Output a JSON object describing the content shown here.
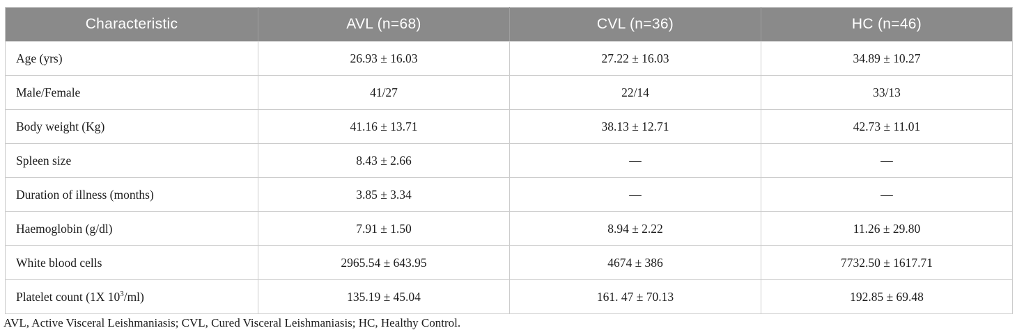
{
  "table": {
    "columns": [
      {
        "label": "Characteristic"
      },
      {
        "label": "AVL (n=68)"
      },
      {
        "label": "CVL (n=36)"
      },
      {
        "label": "HC (n=46)"
      }
    ],
    "rows": [
      {
        "label_segments": [
          {
            "t": "Age (yrs)"
          }
        ],
        "values": [
          "26.93 ± 16.03",
          "27.22 ± 16.03",
          "34.89 ± 10.27"
        ]
      },
      {
        "label_segments": [
          {
            "t": "Male/Female"
          }
        ],
        "values": [
          "41/27",
          "22/14",
          "33/13"
        ]
      },
      {
        "label_segments": [
          {
            "t": "Body weight (Kg)"
          }
        ],
        "values": [
          "41.16 ± 13.71",
          "38.13 ± 12.71",
          "42.73 ± 11.01"
        ]
      },
      {
        "label_segments": [
          {
            "t": "Spleen size"
          }
        ],
        "values": [
          "8.43 ± 2.66",
          "—",
          "—"
        ]
      },
      {
        "label_segments": [
          {
            "t": "Duration of illness (months)"
          }
        ],
        "values": [
          "3.85 ± 3.34",
          "—",
          "—"
        ]
      },
      {
        "label_segments": [
          {
            "t": "Haemoglobin (g/dl)"
          }
        ],
        "values": [
          "7.91 ± 1.50",
          "8.94 ± 2.22",
          "11.26 ± 29.80"
        ]
      },
      {
        "label_segments": [
          {
            "t": "White blood cells"
          }
        ],
        "values": [
          "2965.54 ± 643.95",
          "4674 ± 386",
          "7732.50 ± 1617.71"
        ]
      },
      {
        "label_segments": [
          {
            "t": "Platelet count (1X 10"
          },
          {
            "t": "3",
            "sup": true
          },
          {
            "t": "/ml)"
          }
        ],
        "values": [
          "135.19 ± 45.04",
          "161. 47 ± 70.13",
          "192.85 ± 69.48"
        ]
      }
    ],
    "footnote": "AVL, Active Visceral Leishmaniasis; CVL, Cured Visceral Leishmaniasis; HC, Healthy Control."
  },
  "colors": {
    "header_bg": "#8a8a8a",
    "header_text": "#ffffff",
    "border": "#cccccc",
    "body_text": "#1c1c1c"
  }
}
